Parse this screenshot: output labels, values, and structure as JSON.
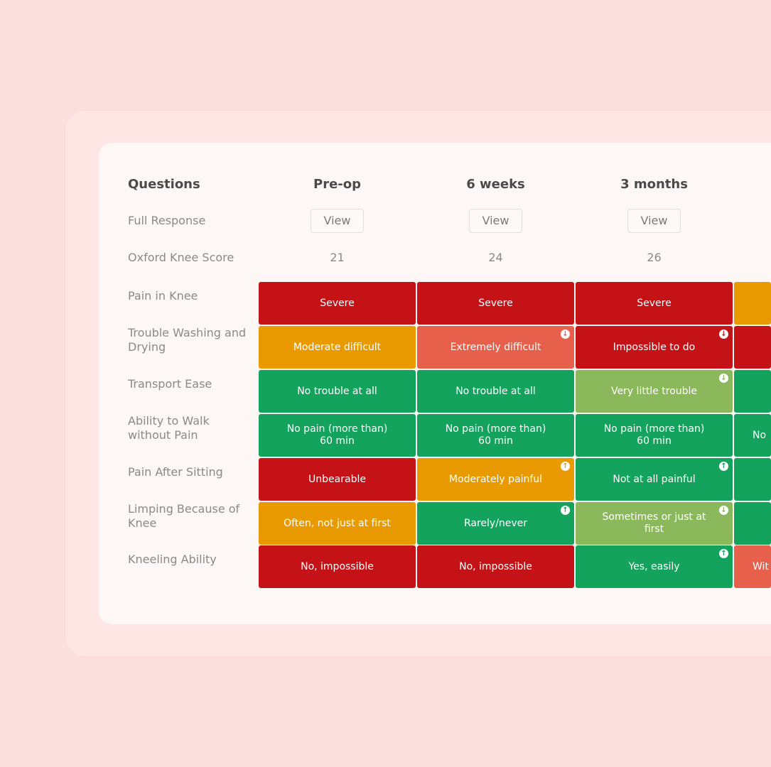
{
  "table": {
    "questions_header": "Questions",
    "columns": [
      {
        "label": "Pre-op",
        "view_label": "View",
        "score": "21"
      },
      {
        "label": "6 weeks",
        "view_label": "View",
        "score": "24"
      },
      {
        "label": "3 months",
        "view_label": "View",
        "score": "26"
      }
    ],
    "full_response_label": "Full Response",
    "score_label": "Oxford Knee Score",
    "rows": [
      {
        "question": "Pain in Knee",
        "cells": [
          {
            "text": "Severe",
            "color": "#c41217",
            "trend": null
          },
          {
            "text": "Severe",
            "color": "#c41217",
            "trend": null
          },
          {
            "text": "Severe",
            "color": "#c41217",
            "trend": null
          },
          {
            "text": "",
            "color": "#e89a00",
            "trend": null
          }
        ]
      },
      {
        "question": "Trouble Washing and Drying",
        "cells": [
          {
            "text": "Moderate difficult",
            "color": "#e89a00",
            "trend": null
          },
          {
            "text": "Extremely difficult",
            "color": "#e6604b",
            "trend": "down"
          },
          {
            "text": "Impossible to do",
            "color": "#c41217",
            "trend": "down"
          },
          {
            "text": "",
            "color": "#c41217",
            "trend": null
          }
        ]
      },
      {
        "question": "Transport Ease",
        "cells": [
          {
            "text": "No trouble at all",
            "color": "#13a35c",
            "trend": null
          },
          {
            "text": "No trouble at all",
            "color": "#13a35c",
            "trend": null
          },
          {
            "text": "Very little trouble",
            "color": "#8ab85a",
            "trend": "down"
          },
          {
            "text": "",
            "color": "#13a35c",
            "trend": null
          }
        ]
      },
      {
        "question": "Ability to Walk without Pain",
        "cells": [
          {
            "text": "No pain (more than) 60 min",
            "color": "#13a35c",
            "trend": null
          },
          {
            "text": "No pain (more than) 60 min",
            "color": "#13a35c",
            "trend": null
          },
          {
            "text": "No pain (more than) 60 min",
            "color": "#13a35c",
            "trend": null
          },
          {
            "text": "No",
            "color": "#13a35c",
            "trend": null
          }
        ]
      },
      {
        "question": "Pain After Sitting",
        "cells": [
          {
            "text": "Unbearable",
            "color": "#c41217",
            "trend": null
          },
          {
            "text": "Moderately painful",
            "color": "#e89a00",
            "trend": "up"
          },
          {
            "text": "Not at all painful",
            "color": "#13a35c",
            "trend": "up"
          },
          {
            "text": "",
            "color": "#13a35c",
            "trend": null
          }
        ]
      },
      {
        "question": "Limping Because of Knee",
        "cells": [
          {
            "text": "Often, not just at first",
            "color": "#e89a00",
            "trend": null
          },
          {
            "text": "Rarely/never",
            "color": "#13a35c",
            "trend": "up"
          },
          {
            "text": "Sometimes or just at first",
            "color": "#8ab85a",
            "trend": "down"
          },
          {
            "text": "",
            "color": "#13a35c",
            "trend": null
          }
        ]
      },
      {
        "question": "Kneeling Ability",
        "cells": [
          {
            "text": "No, impossible",
            "color": "#c41217",
            "trend": null
          },
          {
            "text": "No, impossible",
            "color": "#c41217",
            "trend": null
          },
          {
            "text": "Yes, easily",
            "color": "#13a35c",
            "trend": "up"
          },
          {
            "text": "Wit",
            "color": "#e6604b",
            "trend": null
          }
        ]
      }
    ],
    "trend_icons": {
      "up": "↑",
      "down": "↓"
    }
  }
}
